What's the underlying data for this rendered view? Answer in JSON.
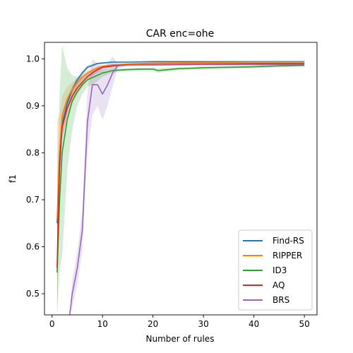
{
  "chart_data": {
    "type": "line",
    "title": "CAR enc=ohe",
    "xlabel": "Number of rules",
    "ylabel": "f1",
    "xlim": [
      -1.5,
      52.5
    ],
    "ylim": [
      0.455,
      1.035
    ],
    "xticks": [
      0,
      10,
      20,
      30,
      40,
      50
    ],
    "yticks": [
      0.5,
      0.6,
      0.7,
      0.8,
      0.9,
      1.0
    ],
    "grid": false,
    "legend": "lower-right",
    "series": [
      {
        "name": "Find-RS",
        "color": "#1f77b4",
        "x": [
          1,
          1.5,
          2,
          3,
          4,
          5,
          6,
          7,
          8,
          9,
          10,
          12,
          15,
          20,
          30,
          40,
          50
        ],
        "y": [
          0.65,
          0.77,
          0.86,
          0.905,
          0.935,
          0.955,
          0.97,
          0.982,
          0.986,
          0.99,
          0.991,
          0.993,
          0.993,
          0.994,
          0.994,
          0.994,
          0.994
        ],
        "band": [
          [
            0.63,
            0.67
          ],
          [
            0.75,
            0.79
          ],
          [
            0.845,
            0.875
          ],
          [
            0.895,
            0.915
          ],
          [
            0.928,
            0.942
          ],
          [
            0.948,
            0.962
          ],
          [
            0.965,
            0.975
          ],
          [
            0.978,
            0.986
          ],
          [
            0.983,
            0.989
          ],
          [
            0.988,
            0.992
          ],
          [
            0.989,
            0.993
          ],
          [
            0.991,
            0.995
          ],
          [
            0.992,
            0.994
          ],
          [
            0.993,
            0.995
          ],
          [
            0.993,
            0.995
          ],
          [
            0.993,
            0.995
          ],
          [
            0.993,
            0.995
          ]
        ]
      },
      {
        "name": "RIPPER",
        "color": "#ff7f0e",
        "x": [
          1,
          1.5,
          2,
          3,
          4,
          5,
          6,
          7,
          8,
          9,
          10,
          12,
          15,
          20,
          30,
          40,
          50
        ],
        "y": [
          0.66,
          0.8,
          0.88,
          0.915,
          0.935,
          0.95,
          0.962,
          0.97,
          0.976,
          0.98,
          0.984,
          0.987,
          0.989,
          0.991,
          0.992,
          0.993,
          0.993
        ],
        "band": [
          [
            0.45,
            0.87
          ],
          [
            0.72,
            0.88
          ],
          [
            0.84,
            0.92
          ],
          [
            0.89,
            0.94
          ],
          [
            0.92,
            0.95
          ],
          [
            0.94,
            0.96
          ],
          [
            0.955,
            0.969
          ],
          [
            0.964,
            0.976
          ],
          [
            0.971,
            0.981
          ],
          [
            0.976,
            0.984
          ],
          [
            0.981,
            0.987
          ],
          [
            0.985,
            0.989
          ],
          [
            0.987,
            0.991
          ],
          [
            0.99,
            0.992
          ],
          [
            0.991,
            0.993
          ],
          [
            0.992,
            0.994
          ],
          [
            0.992,
            0.994
          ]
        ]
      },
      {
        "name": "ID3",
        "color": "#2ca02c",
        "x": [
          1,
          1.5,
          2,
          3,
          4,
          5,
          6,
          7,
          8,
          9,
          10,
          11,
          12,
          15,
          18,
          20,
          21,
          25,
          28,
          30,
          35,
          40,
          45,
          50
        ],
        "y": [
          0.545,
          0.7,
          0.8,
          0.87,
          0.91,
          0.93,
          0.945,
          0.955,
          0.96,
          0.965,
          0.97,
          0.972,
          0.975,
          0.977,
          0.978,
          0.978,
          0.975,
          0.979,
          0.98,
          0.981,
          0.982,
          0.983,
          0.985,
          0.986
        ],
        "band": [
          [
            0.455,
            0.75
          ],
          [
            0.55,
            0.93
          ],
          [
            0.58,
            1.03
          ],
          [
            0.76,
            0.98
          ],
          [
            0.85,
            0.965
          ],
          [
            0.9,
            0.96
          ],
          [
            0.925,
            0.962
          ],
          [
            0.94,
            0.97
          ],
          [
            0.945,
            0.974
          ],
          [
            0.952,
            0.978
          ],
          [
            0.962,
            0.978
          ],
          [
            0.966,
            0.978
          ],
          [
            0.97,
            0.98
          ],
          [
            0.974,
            0.98
          ],
          [
            0.975,
            0.981
          ],
          [
            0.975,
            0.981
          ],
          [
            0.97,
            0.98
          ],
          [
            0.976,
            0.982
          ],
          [
            0.977,
            0.983
          ],
          [
            0.978,
            0.984
          ],
          [
            0.979,
            0.985
          ],
          [
            0.98,
            0.986
          ],
          [
            0.982,
            0.988
          ],
          [
            0.984,
            0.988
          ]
        ]
      },
      {
        "name": "AQ",
        "color": "#d62728",
        "x": [
          1,
          1.5,
          2,
          3,
          4,
          5,
          6,
          7,
          8,
          9,
          10,
          12,
          15,
          20,
          30,
          40,
          50
        ],
        "y": [
          0.555,
          0.78,
          0.855,
          0.895,
          0.92,
          0.938,
          0.95,
          0.962,
          0.97,
          0.977,
          0.982,
          0.985,
          0.987,
          0.988,
          0.989,
          0.99,
          0.99
        ],
        "band": [
          [
            0.45,
            0.66
          ],
          [
            0.74,
            0.82
          ],
          [
            0.83,
            0.88
          ],
          [
            0.875,
            0.915
          ],
          [
            0.905,
            0.935
          ],
          [
            0.926,
            0.95
          ],
          [
            0.94,
            0.96
          ],
          [
            0.954,
            0.97
          ],
          [
            0.963,
            0.977
          ],
          [
            0.971,
            0.983
          ],
          [
            0.978,
            0.986
          ],
          [
            0.982,
            0.988
          ],
          [
            0.985,
            0.989
          ],
          [
            0.986,
            0.99
          ],
          [
            0.987,
            0.991
          ],
          [
            0.988,
            0.992
          ],
          [
            0.988,
            0.992
          ]
        ]
      },
      {
        "name": "BRS",
        "color": "#9467bd",
        "x": [
          3.5,
          4,
          5,
          6,
          7,
          8,
          9,
          10,
          11,
          12,
          13,
          15,
          20,
          30,
          40,
          50
        ],
        "y": [
          0.455,
          0.5,
          0.555,
          0.635,
          0.865,
          0.945,
          0.945,
          0.925,
          0.945,
          0.97,
          0.985,
          0.987,
          0.987,
          0.988,
          0.988,
          0.988
        ],
        "band": [
          [
            0.455,
            0.455
          ],
          [
            0.47,
            0.53
          ],
          [
            0.52,
            0.59
          ],
          [
            0.59,
            0.68
          ],
          [
            0.8,
            0.93
          ],
          [
            0.88,
            1.0
          ],
          [
            0.9,
            0.99
          ],
          [
            0.87,
            0.98
          ],
          [
            0.9,
            0.99
          ],
          [
            0.94,
            1.005
          ],
          [
            0.98,
            0.99
          ],
          [
            0.985,
            0.989
          ],
          [
            0.985,
            0.989
          ],
          [
            0.986,
            0.99
          ],
          [
            0.986,
            0.99
          ],
          [
            0.986,
            0.99
          ]
        ]
      }
    ]
  }
}
